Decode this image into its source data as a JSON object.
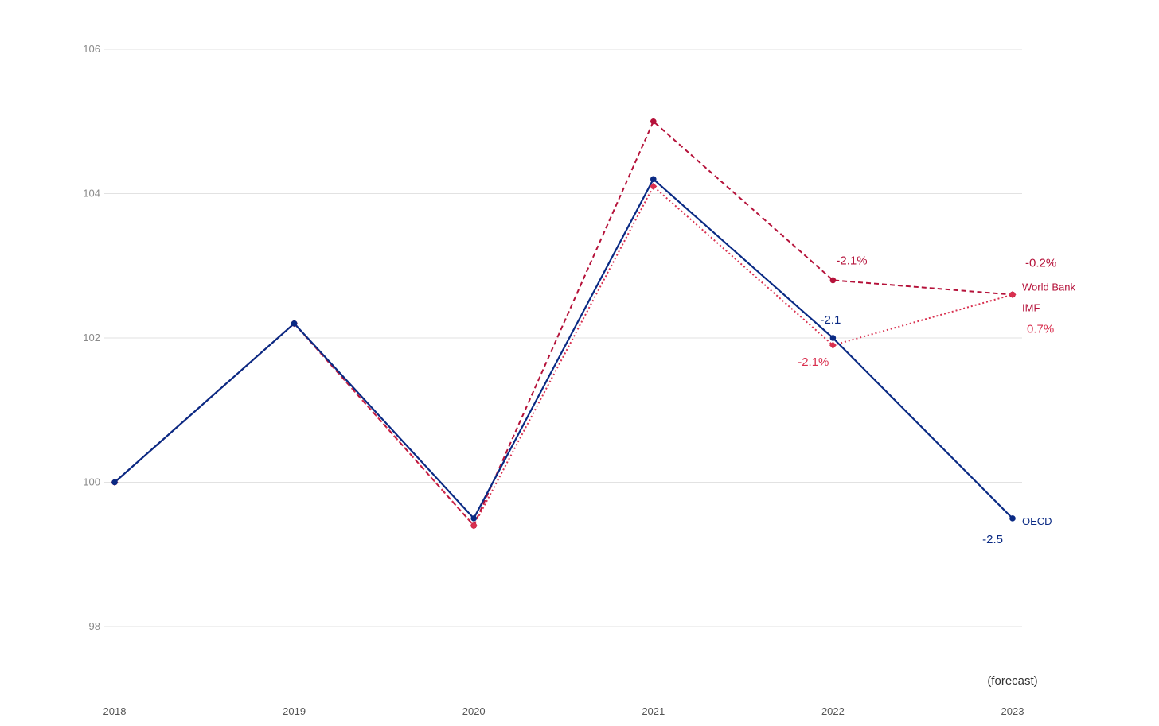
{
  "chart_data": {
    "type": "line",
    "x": [
      "2018",
      "2019",
      "2020",
      "2021",
      "2022",
      "2023"
    ],
    "ylim": [
      97,
      106.3
    ],
    "yticks": [
      98,
      100,
      102,
      104,
      106
    ],
    "grid": true,
    "note": "(forecast)",
    "series": [
      {
        "name": "World Bank",
        "style": "dashed",
        "color": "#b5123a",
        "marker": "circle",
        "points": [
          {
            "x": "2018",
            "y": 100
          },
          {
            "x": "2019",
            "y": 102.2
          },
          {
            "x": "2020",
            "y": 99.4
          },
          {
            "x": "2021",
            "y": 105.0
          },
          {
            "x": "2022",
            "y": 102.8
          },
          {
            "x": "2023",
            "y": 102.6
          }
        ]
      },
      {
        "name": "IMF",
        "style": "dotted",
        "color": "#d9304f",
        "marker": "diamond",
        "points": [
          {
            "x": "2018",
            "y": 100
          },
          {
            "x": "2019",
            "y": 102.2
          },
          {
            "x": "2020",
            "y": 99.4
          },
          {
            "x": "2021",
            "y": 104.1
          },
          {
            "x": "2022",
            "y": 101.9
          },
          {
            "x": "2023",
            "y": 102.6
          }
        ]
      },
      {
        "name": "OECD",
        "style": "solid",
        "color": "#0a2a84",
        "marker": "circle",
        "points": [
          {
            "x": "2018",
            "y": 100
          },
          {
            "x": "2019",
            "y": 102.2
          },
          {
            "x": "2020",
            "y": 99.5
          },
          {
            "x": "2021",
            "y": 104.2
          },
          {
            "x": "2022",
            "y": 102.0
          },
          {
            "x": "2023",
            "y": 99.5
          }
        ]
      }
    ],
    "annotations": [
      {
        "text": "-2.1%",
        "series": "World Bank",
        "x": "2022",
        "y": 102.8,
        "color": "#b5123a",
        "placement": "above-right"
      },
      {
        "text": "-0.2%",
        "series": "World Bank",
        "x": "2023",
        "y": 102.6,
        "color": "#b5123a",
        "placement": "above-right"
      },
      {
        "text": "-2.1",
        "series": "OECD",
        "x": "2022",
        "y": 102.0,
        "color": "#0a2a84",
        "placement": "above"
      },
      {
        "text": "-2.1%",
        "series": "IMF",
        "x": "2022",
        "y": 101.9,
        "color": "#d9304f",
        "placement": "below-left"
      },
      {
        "text": "0.7%",
        "series": "IMF",
        "x": "2023",
        "y": 102.6,
        "color": "#d9304f",
        "placement": "below-right"
      },
      {
        "text": "-2.5",
        "series": "OECD",
        "x": "2023",
        "y": 99.5,
        "color": "#0a2a84",
        "placement": "below-left"
      }
    ]
  }
}
